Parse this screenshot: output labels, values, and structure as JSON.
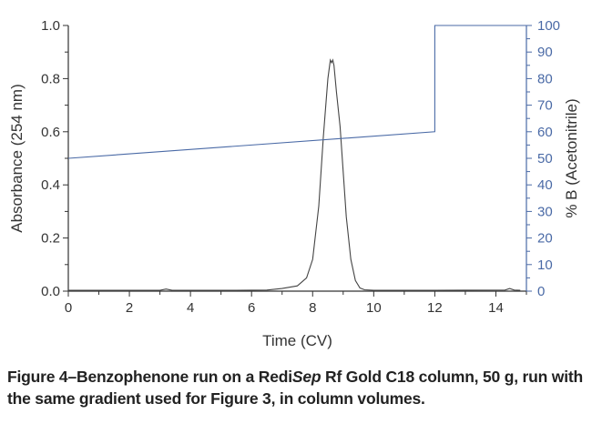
{
  "chart_data": {
    "type": "line",
    "xlabel": "Time (CV)",
    "ylabel": "Absorbance (254 nm)",
    "y2label": "% B (Acetonitrile)",
    "xlim": [
      0,
      15
    ],
    "ylim": [
      0,
      1.0
    ],
    "y2lim": [
      0,
      100
    ],
    "xticks": [
      "0",
      "2",
      "4",
      "6",
      "8",
      "10",
      "12",
      "14"
    ],
    "yticks": [
      "0.0",
      "0.2",
      "0.4",
      "0.6",
      "0.8",
      "1.0"
    ],
    "y2ticks": [
      "0",
      "10",
      "20",
      "30",
      "40",
      "50",
      "60",
      "70",
      "80",
      "90",
      "100"
    ],
    "grid": false,
    "series": [
      {
        "axis": "left",
        "color": "#444444",
        "x": [
          0,
          3.0,
          3.2,
          3.4,
          5.5,
          6.5,
          7.0,
          7.5,
          7.8,
          8.0,
          8.2,
          8.35,
          8.5,
          8.58,
          8.62,
          8.66,
          8.7,
          8.78,
          8.9,
          9.0,
          9.1,
          9.25,
          9.4,
          9.55,
          9.7,
          10.0,
          12,
          14.3,
          14.45,
          14.6,
          14.8
        ],
        "y": [
          0.003,
          0.003,
          0.008,
          0.003,
          0.003,
          0.004,
          0.01,
          0.02,
          0.05,
          0.12,
          0.32,
          0.58,
          0.8,
          0.87,
          0.86,
          0.87,
          0.85,
          0.75,
          0.62,
          0.45,
          0.28,
          0.12,
          0.04,
          0.012,
          0.005,
          0.003,
          0.003,
          0.004,
          0.01,
          0.004,
          0.003
        ]
      },
      {
        "axis": "right",
        "color": "#4a6aa6",
        "x": [
          0,
          12,
          12,
          15
        ],
        "y": [
          50,
          60,
          100,
          100
        ]
      }
    ]
  },
  "caption": {
    "part1": "Figure 4–Benzophenone run on a Redi",
    "italic": "Sep",
    "part2": " Rf Gold C18 column, 50 g, run with the same gradient used for Figure 3, in column volumes."
  }
}
